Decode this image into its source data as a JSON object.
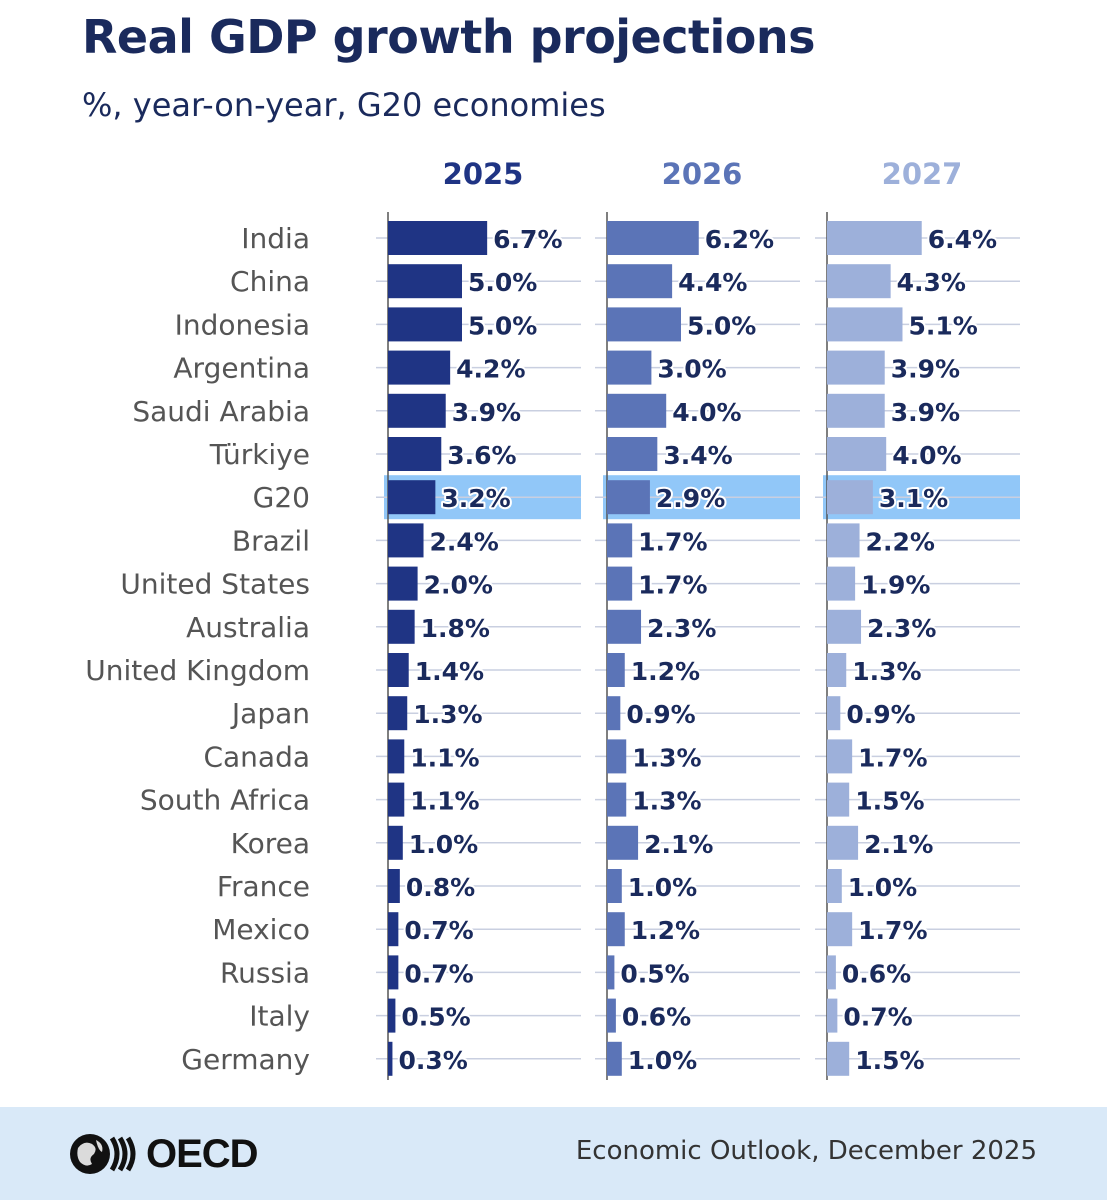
{
  "header": {
    "title": "Real GDP growth projections",
    "subtitle": "%, year-on-year, G20 economies"
  },
  "footer": {
    "logo_text": "OECD",
    "source": "Economic Outlook, December 2025"
  },
  "colors": {
    "series_2025": "#1f3484",
    "series_2026": "#5b74b7",
    "series_2027": "#9db0da",
    "highlight": "#91c7f8",
    "title": "#1a2a5c"
  },
  "chart_data": {
    "type": "bar",
    "orientation": "horizontal",
    "title": "Real GDP growth projections",
    "subtitle": "%, year-on-year, G20 economies",
    "unit": "%",
    "highlight_category": "G20",
    "categories": [
      "India",
      "China",
      "Indonesia",
      "Argentina",
      "Saudi Arabia",
      "Türkiye",
      "G20",
      "Brazil",
      "United States",
      "Australia",
      "United Kingdom",
      "Japan",
      "Canada",
      "South Africa",
      "Korea",
      "France",
      "Mexico",
      "Russia",
      "Italy",
      "Germany"
    ],
    "series": [
      {
        "name": "2025",
        "values": [
          6.7,
          5.0,
          5.0,
          4.2,
          3.9,
          3.6,
          3.2,
          2.4,
          2.0,
          1.8,
          1.4,
          1.3,
          1.1,
          1.1,
          1.0,
          0.8,
          0.7,
          0.7,
          0.5,
          0.3
        ],
        "labels": [
          "6.7%",
          "5.0%",
          "5.0%",
          "4.2%",
          "3.9%",
          "3.6%",
          "3.2%",
          "2.4%",
          "2.0%",
          "1.8%",
          "1.4%",
          "1.3%",
          "1.1%",
          "1.1%",
          "1.0%",
          "0.8%",
          "0.7%",
          "0.7%",
          "0.5%",
          "0.3%"
        ]
      },
      {
        "name": "2026",
        "values": [
          6.2,
          4.4,
          5.0,
          3.0,
          4.0,
          3.4,
          2.9,
          1.7,
          1.7,
          2.3,
          1.2,
          0.9,
          1.3,
          1.3,
          2.1,
          1.0,
          1.2,
          0.5,
          0.6,
          1.0
        ],
        "labels": [
          "6.2%",
          "4.4%",
          "5.0%",
          "3.0%",
          "4.0%",
          "3.4%",
          "2.9%",
          "1.7%",
          "1.7%",
          "2.3%",
          "1.2%",
          "0.9%",
          "1.3%",
          "1.3%",
          "2.1%",
          "1.0%",
          "1.2%",
          "0.5%",
          "0.6%",
          "1.0%"
        ]
      },
      {
        "name": "2027",
        "values": [
          6.4,
          4.3,
          5.1,
          3.9,
          3.9,
          4.0,
          3.1,
          2.2,
          1.9,
          2.3,
          1.3,
          0.9,
          1.7,
          1.5,
          2.1,
          1.0,
          1.7,
          0.6,
          0.7,
          1.5
        ],
        "labels": [
          "6.4%",
          "4.3%",
          "5.1%",
          "3.9%",
          "3.9%",
          "4.0%",
          "3.1%",
          "2.2%",
          "1.9%",
          "2.3%",
          "1.3%",
          "0.9%",
          "1.7%",
          "1.5%",
          "2.1%",
          "1.0%",
          "1.7%",
          "0.6%",
          "0.7%",
          "1.5%"
        ]
      }
    ],
    "xlim": [
      0,
      7.5
    ],
    "grid": true
  }
}
